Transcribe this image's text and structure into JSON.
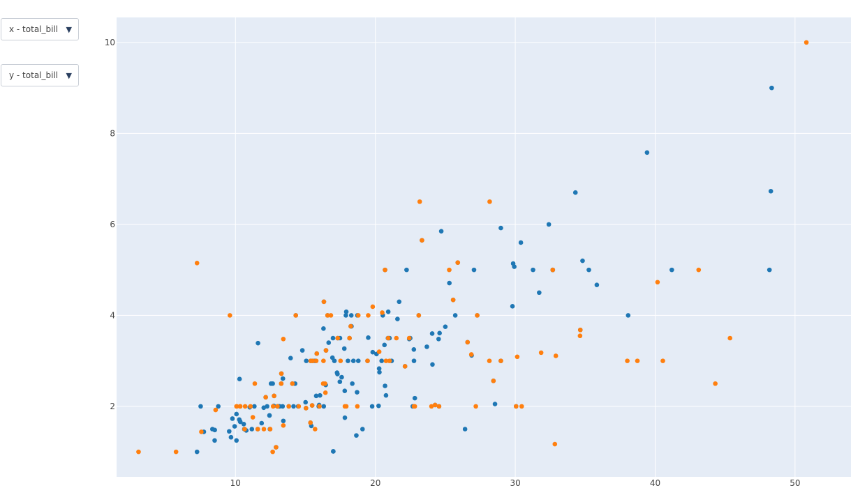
{
  "controls": {
    "x_dropdown": {
      "selected": "x - total_bill",
      "arrow_icon": "▼"
    },
    "y_dropdown": {
      "selected": "y - total_bill",
      "arrow_icon": "▼"
    }
  },
  "chart_data": {
    "type": "scatter",
    "title": "",
    "xlabel": "",
    "ylabel": "",
    "xlim": [
      1.5,
      54
    ],
    "ylim": [
      0.45,
      10.55
    ],
    "x_ticks": [
      10,
      20,
      30,
      40,
      50
    ],
    "y_ticks": [
      2,
      4,
      6,
      8,
      10
    ],
    "grid": true,
    "background": "#e5ecf6",
    "series": [
      {
        "color": "#1f77b4",
        "points": [
          [
            7.25,
            1.0
          ],
          [
            7.51,
            2.0
          ],
          [
            7.74,
            1.44
          ],
          [
            8.35,
            1.5
          ],
          [
            8.51,
            1.25
          ],
          [
            8.52,
            1.48
          ],
          [
            8.77,
            2.0
          ],
          [
            9.55,
            1.45
          ],
          [
            9.68,
            1.32
          ],
          [
            9.78,
            1.73
          ],
          [
            9.94,
            1.56
          ],
          [
            10.07,
            1.83
          ],
          [
            10.07,
            1.25
          ],
          [
            10.27,
            1.71
          ],
          [
            10.29,
            2.6
          ],
          [
            10.33,
            1.67
          ],
          [
            10.34,
            1.66
          ],
          [
            10.59,
            1.61
          ],
          [
            10.63,
            1.5
          ],
          [
            10.65,
            1.5
          ],
          [
            10.77,
            1.47
          ],
          [
            11.02,
            1.98
          ],
          [
            11.17,
            1.5
          ],
          [
            11.35,
            2.0
          ],
          [
            11.59,
            1.5
          ],
          [
            11.61,
            3.39
          ],
          [
            11.87,
            1.63
          ],
          [
            12.02,
            1.97
          ],
          [
            12.16,
            2.2
          ],
          [
            12.26,
            2.0
          ],
          [
            12.43,
            1.8
          ],
          [
            12.46,
            1.5
          ],
          [
            12.54,
            2.5
          ],
          [
            12.66,
            2.5
          ],
          [
            12.74,
            2.01
          ],
          [
            12.76,
            2.23
          ],
          [
            13.0,
            2.0
          ],
          [
            13.03,
            2.0
          ],
          [
            13.13,
            2.0
          ],
          [
            13.27,
            2.5
          ],
          [
            13.28,
            2.72
          ],
          [
            13.37,
            2.0
          ],
          [
            13.39,
            2.61
          ],
          [
            13.42,
            1.68
          ],
          [
            13.81,
            2.0
          ],
          [
            13.94,
            3.06
          ],
          [
            14.07,
            2.5
          ],
          [
            14.15,
            2.0
          ],
          [
            14.26,
            2.5
          ],
          [
            14.31,
            4.0
          ],
          [
            14.78,
            3.23
          ],
          [
            15.01,
            2.09
          ],
          [
            15.04,
            1.96
          ],
          [
            15.06,
            3.0
          ],
          [
            15.36,
            1.64
          ],
          [
            15.38,
            3.0
          ],
          [
            15.42,
            1.57
          ],
          [
            15.48,
            2.02
          ],
          [
            15.53,
            3.0
          ],
          [
            15.77,
            2.23
          ],
          [
            15.81,
            3.16
          ],
          [
            15.95,
            2.0
          ],
          [
            15.98,
            2.03
          ],
          [
            16.0,
            2.0
          ],
          [
            16.04,
            2.24
          ],
          [
            16.29,
            3.71
          ],
          [
            16.31,
            2.0
          ],
          [
            16.45,
            2.47
          ],
          [
            16.47,
            3.23
          ],
          [
            16.58,
            4.0
          ],
          [
            16.66,
            3.4
          ],
          [
            16.93,
            3.07
          ],
          [
            16.97,
            3.5
          ],
          [
            16.99,
            1.01
          ],
          [
            17.07,
            3.0
          ],
          [
            17.26,
            2.74
          ],
          [
            17.29,
            2.71
          ],
          [
            17.46,
            2.54
          ],
          [
            17.47,
            3.5
          ],
          [
            17.59,
            2.64
          ],
          [
            17.78,
            3.27
          ],
          [
            17.81,
            2.34
          ],
          [
            17.82,
            1.75
          ],
          [
            17.89,
            4.0
          ],
          [
            17.92,
            4.08
          ],
          [
            18.04,
            3.0
          ],
          [
            18.15,
            3.5
          ],
          [
            18.24,
            3.76
          ],
          [
            18.28,
            4.0
          ],
          [
            18.29,
            3.76
          ],
          [
            18.35,
            2.5
          ],
          [
            18.43,
            3.0
          ],
          [
            18.69,
            2.31
          ],
          [
            18.71,
            4.0
          ],
          [
            18.78,
            3.0
          ],
          [
            19.44,
            3.0
          ],
          [
            19.49,
            3.51
          ],
          [
            19.77,
            2.0
          ],
          [
            19.81,
            3.19
          ],
          [
            20.08,
            3.15
          ],
          [
            20.23,
            2.01
          ],
          [
            20.27,
            2.83
          ],
          [
            20.29,
            2.75
          ],
          [
            20.45,
            3.0
          ],
          [
            20.65,
            3.35
          ],
          [
            20.69,
            2.45
          ],
          [
            20.76,
            2.24
          ],
          [
            20.9,
            3.5
          ],
          [
            21.01,
            3.5
          ],
          [
            21.58,
            3.92
          ],
          [
            22.23,
            5.0
          ],
          [
            22.42,
            3.48
          ],
          [
            22.67,
            2.0
          ],
          [
            22.76,
            3.0
          ],
          [
            22.82,
            2.18
          ],
          [
            23.33,
            5.65
          ],
          [
            24.06,
            3.6
          ],
          [
            24.08,
            2.92
          ],
          [
            24.27,
            2.03
          ],
          [
            24.55,
            2.0
          ],
          [
            24.59,
            3.61
          ],
          [
            25.0,
            3.75
          ],
          [
            25.71,
            4.0
          ],
          [
            26.59,
            3.41
          ],
          [
            26.88,
            3.12
          ],
          [
            27.28,
            4.0
          ],
          [
            28.44,
            2.56
          ],
          [
            28.55,
            2.05
          ],
          [
            28.97,
            3.0
          ],
          [
            29.8,
            4.2
          ],
          [
            29.85,
            5.14
          ],
          [
            30.06,
            2.0
          ],
          [
            30.4,
            5.6
          ],
          [
            31.27,
            5.0
          ],
          [
            31.71,
            4.5
          ],
          [
            32.4,
            6.0
          ],
          [
            32.68,
            5.0
          ],
          [
            34.3,
            6.7
          ],
          [
            34.65,
            3.68
          ],
          [
            34.81,
            5.2
          ],
          [
            35.26,
            5.0
          ],
          [
            35.83,
            4.67
          ],
          [
            38.07,
            4.0
          ],
          [
            39.42,
            7.58
          ],
          [
            41.19,
            5.0
          ],
          [
            48.17,
            5.0
          ],
          [
            48.27,
            6.73
          ],
          [
            48.33,
            9.0
          ],
          [
            20.69,
            5.0
          ],
          [
            12.9,
            1.1
          ],
          [
            16.32,
            4.3
          ],
          [
            21.7,
            4.3
          ],
          [
            18.64,
            1.36
          ],
          [
            19.08,
            1.5
          ],
          [
            22.49,
            3.5
          ],
          [
            25.56,
            4.34
          ],
          [
            24.71,
            5.85
          ],
          [
            26.41,
            1.5
          ],
          [
            24.52,
            3.48
          ],
          [
            28.97,
            5.92
          ],
          [
            23.1,
            4.0
          ],
          [
            22.12,
            2.88
          ],
          [
            32.68,
            5.0
          ],
          [
            17.31,
            3.5
          ],
          [
            20.92,
            4.08
          ],
          [
            16.99,
            1.01
          ],
          [
            22.75,
            3.25
          ],
          [
            20.53,
            4.0
          ],
          [
            23.68,
            3.31
          ],
          [
            27.05,
            5.0
          ],
          [
            21.16,
            3.0
          ],
          [
            25.89,
            5.16
          ],
          [
            25.29,
            4.71
          ],
          [
            29.93,
            5.07
          ],
          [
            14.48,
            2.0
          ],
          [
            13.16,
            2.0
          ],
          [
            15.69,
            3.0
          ],
          [
            12.43,
            1.8
          ]
        ]
      },
      {
        "color": "#ff7f0e",
        "points": [
          [
            3.07,
            1.0
          ],
          [
            5.75,
            1.0
          ],
          [
            7.25,
            5.15
          ],
          [
            7.56,
            1.44
          ],
          [
            8.58,
            1.92
          ],
          [
            9.6,
            4.0
          ],
          [
            10.07,
            2.0
          ],
          [
            10.09,
            2.0
          ],
          [
            10.33,
            2.0
          ],
          [
            10.34,
            2.0
          ],
          [
            10.65,
            1.5
          ],
          [
            10.69,
            2.0
          ],
          [
            11.07,
            2.0
          ],
          [
            11.24,
            1.76
          ],
          [
            11.38,
            2.5
          ],
          [
            11.59,
            1.5
          ],
          [
            12.03,
            1.5
          ],
          [
            12.16,
            2.2
          ],
          [
            12.48,
            1.5
          ],
          [
            12.66,
            1.0
          ],
          [
            12.76,
            2.23
          ],
          [
            12.9,
            1.1
          ],
          [
            13.0,
            2.0
          ],
          [
            13.27,
            2.5
          ],
          [
            13.42,
            3.48
          ],
          [
            13.42,
            1.58
          ],
          [
            14.07,
            2.5
          ],
          [
            14.31,
            4.0
          ],
          [
            14.52,
            2.0
          ],
          [
            15.04,
            1.96
          ],
          [
            15.36,
            1.64
          ],
          [
            15.48,
            2.02
          ],
          [
            15.69,
            1.5
          ],
          [
            15.77,
            3.0
          ],
          [
            15.81,
            3.16
          ],
          [
            16.27,
            2.5
          ],
          [
            16.32,
            4.3
          ],
          [
            16.4,
            2.5
          ],
          [
            16.43,
            2.3
          ],
          [
            16.47,
            3.23
          ],
          [
            16.58,
            4.0
          ],
          [
            16.82,
            4.0
          ],
          [
            17.31,
            3.5
          ],
          [
            17.51,
            3.0
          ],
          [
            17.82,
            2.0
          ],
          [
            18.15,
            3.5
          ],
          [
            18.24,
            3.76
          ],
          [
            18.78,
            4.0
          ],
          [
            19.44,
            3.0
          ],
          [
            19.81,
            4.19
          ],
          [
            20.27,
            3.2
          ],
          [
            20.49,
            4.06
          ],
          [
            20.69,
            5.0
          ],
          [
            20.76,
            3.0
          ],
          [
            20.92,
            3.5
          ],
          [
            21.01,
            3.0
          ],
          [
            22.12,
            2.88
          ],
          [
            22.42,
            3.5
          ],
          [
            22.76,
            2.0
          ],
          [
            23.1,
            4.0
          ],
          [
            23.17,
            6.5
          ],
          [
            23.33,
            5.65
          ],
          [
            24.01,
            2.0
          ],
          [
            24.27,
            2.03
          ],
          [
            25.28,
            5.0
          ],
          [
            25.56,
            4.34
          ],
          [
            25.89,
            5.16
          ],
          [
            26.59,
            3.41
          ],
          [
            26.86,
            3.14
          ],
          [
            27.18,
            2.0
          ],
          [
            27.28,
            4.0
          ],
          [
            28.15,
            3.0
          ],
          [
            28.17,
            6.5
          ],
          [
            28.44,
            2.56
          ],
          [
            28.97,
            3.0
          ],
          [
            30.06,
            2.0
          ],
          [
            30.14,
            3.09
          ],
          [
            30.46,
            2.0
          ],
          [
            31.85,
            3.18
          ],
          [
            32.68,
            5.0
          ],
          [
            32.83,
            1.17
          ],
          [
            32.9,
            3.11
          ],
          [
            34.63,
            3.55
          ],
          [
            34.65,
            3.68
          ],
          [
            38.01,
            3.0
          ],
          [
            38.73,
            3.0
          ],
          [
            40.17,
            4.73
          ],
          [
            40.55,
            3.0
          ],
          [
            43.11,
            5.0
          ],
          [
            44.3,
            2.5
          ],
          [
            45.35,
            3.5
          ],
          [
            50.81,
            10.0
          ],
          [
            15.38,
            3.0
          ],
          [
            13.28,
            2.72
          ],
          [
            16.0,
            2.0
          ],
          [
            19.49,
            4.0
          ],
          [
            13.81,
            2.0
          ],
          [
            16.29,
            3.0
          ],
          [
            18.71,
            2.0
          ],
          [
            12.69,
            2.0
          ],
          [
            17.92,
            2.0
          ],
          [
            22.82,
            2.0
          ],
          [
            24.55,
            2.0
          ],
          [
            21.5,
            3.5
          ],
          [
            15.53,
            3.0
          ]
        ]
      }
    ]
  }
}
